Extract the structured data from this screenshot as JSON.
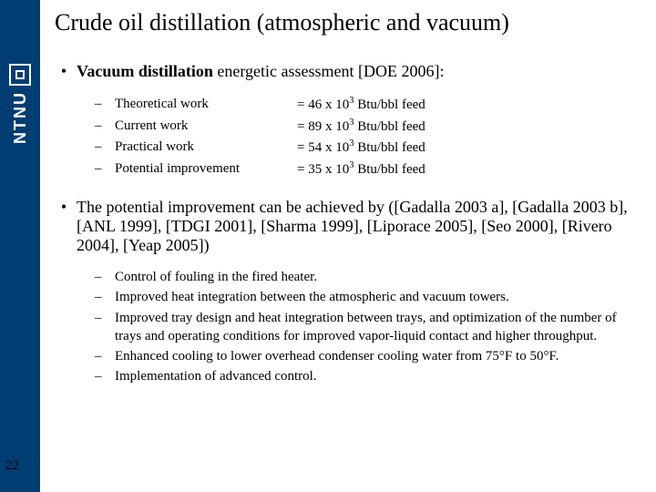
{
  "sidebar": {
    "brand": "NTNU",
    "bg_color": "#003d73"
  },
  "title": "Crude oil distillation (atmospheric and vacuum)",
  "bullet1": {
    "prefix": "Vacuum distillation",
    "suffix": " energetic assessment [DOE 2006]:"
  },
  "assessment": {
    "rows": [
      {
        "label": "Theoretical work",
        "value_prefix": "= 46 x 10",
        "exp": "3",
        "value_suffix": " Btu/bbl feed"
      },
      {
        "label": "Current work",
        "value_prefix": "= 89 x 10",
        "exp": "3",
        "value_suffix": " Btu/bbl feed"
      },
      {
        "label": "Practical work",
        "value_prefix": "= 54 x 10",
        "exp": "3",
        "value_suffix": " Btu/bbl feed"
      },
      {
        "label": "Potential improvement",
        "value_prefix": "= 35 x 10",
        "exp": "3",
        "value_suffix": " Btu/bbl feed"
      }
    ]
  },
  "bullet2": "The potential improvement can be achieved by ([Gadalla 2003 a], [Gadalla 2003 b], [ANL 1999], [TDGI 2001], [Sharma 1999], [Liporace 2005], [Seo 2000], [Rivero 2004], [Yeap 2005])",
  "improvements": [
    "Control of fouling in the fired heater.",
    "Improved heat integration between the atmospheric and vacuum towers.",
    "Improved tray design and heat integration between trays, and optimization of the number of trays and operating conditions for improved vapor-liquid contact and higher throughput.",
    "Enhanced cooling to lower overhead condenser cooling water from 75°F to 50°F.",
    "Implementation of advanced control."
  ],
  "page_number": "22"
}
